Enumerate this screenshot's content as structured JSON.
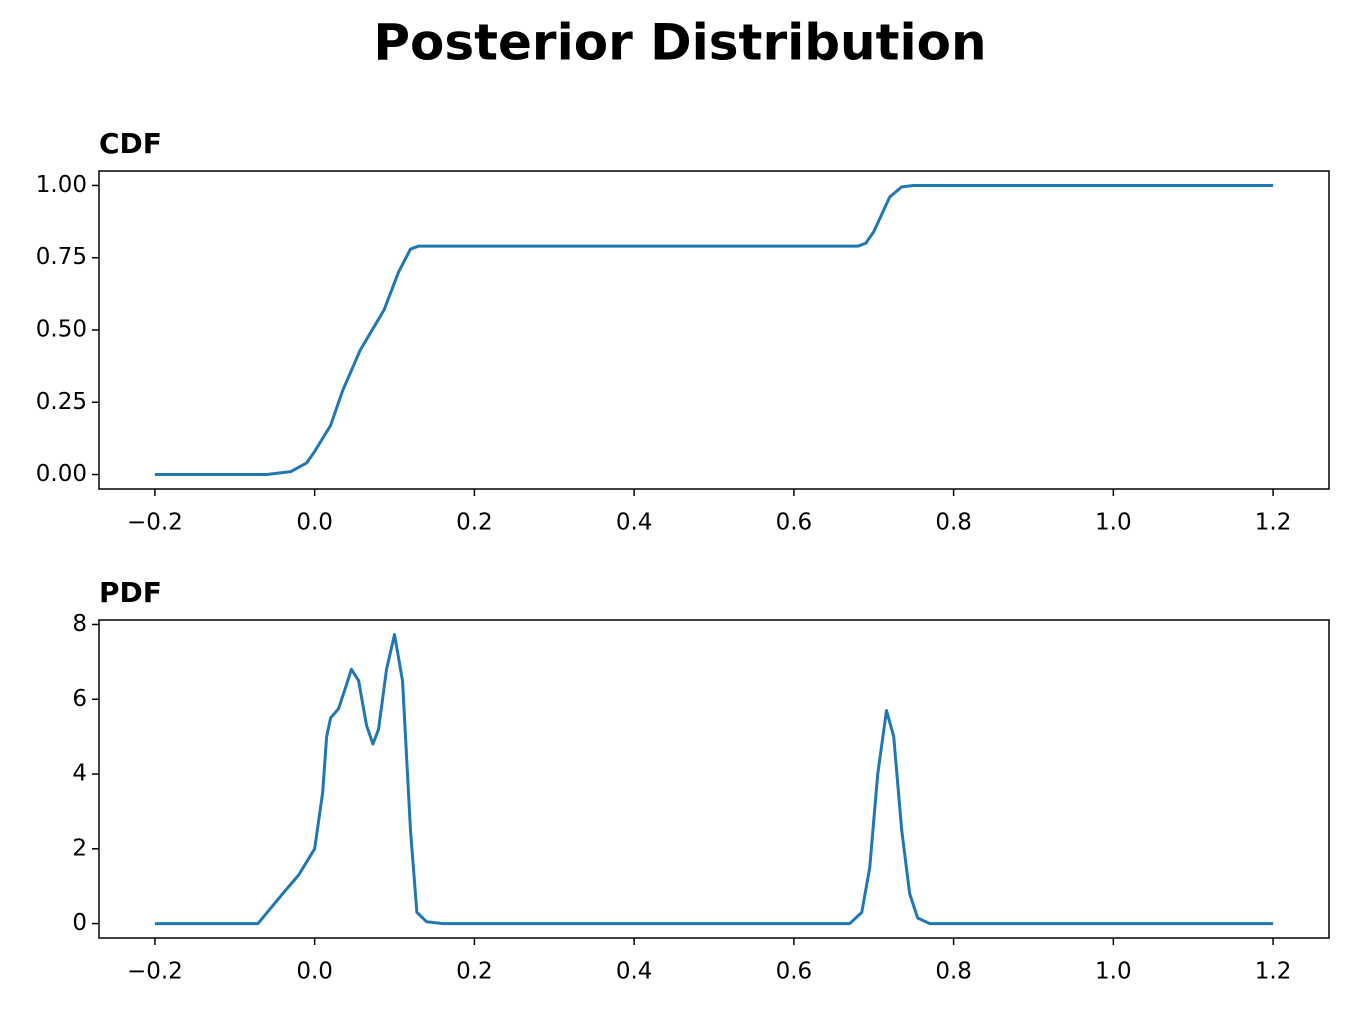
{
  "title": "Posterior Distribution",
  "chart_data": [
    {
      "type": "line",
      "title": "CDF",
      "x": [
        -0.2,
        -0.06,
        -0.03,
        -0.01,
        0.0,
        0.02,
        0.035,
        0.057,
        0.087,
        0.105,
        0.12,
        0.13,
        0.68,
        0.69,
        0.7,
        0.71,
        0.72,
        0.735,
        0.75,
        1.2
      ],
      "values": [
        0,
        0,
        0.01,
        0.04,
        0.08,
        0.17,
        0.29,
        0.43,
        0.57,
        0.7,
        0.78,
        0.79,
        0.79,
        0.8,
        0.84,
        0.9,
        0.96,
        0.995,
        1.0,
        1.0
      ],
      "color": "#1f77b4",
      "xlim": [
        -0.27,
        1.27
      ],
      "xticks": [
        {
          "value": -0.2,
          "label": "−0.2"
        },
        {
          "value": 0.0,
          "label": "0.0"
        },
        0.2,
        0.4,
        0.6,
        0.8,
        {
          "value": 1.0,
          "label": "1.0"
        },
        1.2
      ],
      "ylim": [
        -0.05,
        1.05
      ],
      "yticks": [
        {
          "value": 0,
          "label": "0.00"
        },
        {
          "value": 0.25,
          "label": "0.25"
        },
        {
          "value": 0.5,
          "label": "0.50"
        },
        {
          "value": 0.75,
          "label": "0.75"
        },
        {
          "value": 1,
          "label": "1.00"
        }
      ]
    },
    {
      "type": "line",
      "title": "PDF",
      "x": [
        -0.2,
        -0.071,
        -0.04,
        -0.02,
        0.0,
        0.01,
        0.015,
        0.02,
        0.03,
        0.04,
        0.046,
        0.055,
        0.065,
        0.073,
        0.08,
        0.09,
        0.1,
        0.11,
        0.115,
        0.12,
        0.128,
        0.14,
        0.16,
        0.67,
        0.685,
        0.695,
        0.705,
        0.716,
        0.725,
        0.735,
        0.745,
        0.755,
        0.77,
        1.2
      ],
      "values": [
        0,
        0,
        0.8,
        1.3,
        2.0,
        3.5,
        5.0,
        5.5,
        5.75,
        6.4,
        6.8,
        6.5,
        5.3,
        4.8,
        5.2,
        6.8,
        7.73,
        6.5,
        4.5,
        2.5,
        0.3,
        0.05,
        0,
        0,
        0.3,
        1.5,
        4.0,
        5.7,
        5.0,
        2.5,
        0.8,
        0.15,
        0,
        0
      ],
      "color": "#1f77b4",
      "xlim": [
        -0.27,
        1.27
      ],
      "xticks": [
        {
          "value": -0.2,
          "label": "−0.2"
        },
        {
          "value": 0.0,
          "label": "0.0"
        },
        0.2,
        0.4,
        0.6,
        0.8,
        {
          "value": 1.0,
          "label": "1.0"
        },
        1.2
      ],
      "ylim": [
        -0.386,
        8.12
      ],
      "yticks": [
        0,
        2,
        4,
        6,
        8
      ]
    }
  ]
}
